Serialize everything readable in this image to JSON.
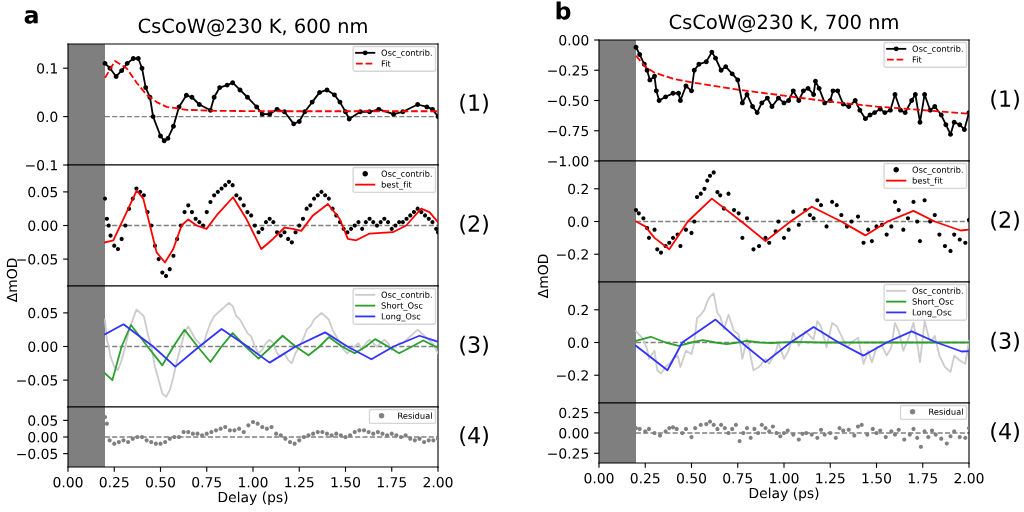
{
  "chart_data": [
    {
      "type": "line",
      "title": "CsCoW@230 K, 600 nm",
      "annotations": [
        "(1)",
        "a"
      ],
      "xlim": [
        0,
        2
      ],
      "ylim": [
        -0.1,
        0.15
      ],
      "yticks": [
        {
          "value": -0.1,
          "label": "−0.1"
        },
        {
          "value": 0,
          "label": "0.0"
        },
        {
          "value": 0.1,
          "label": "0.1"
        }
      ],
      "tick_labels": "y",
      "legend": "top right",
      "bands": [
        {
          "axis": "x",
          "from": 0,
          "to": 0.2,
          "color": "#7f7f7f"
        }
      ],
      "ref_lines": [
        {
          "axis": "y",
          "value": 0,
          "color": "#808080",
          "line_style": "dashed"
        }
      ],
      "series": [
        {
          "name": "Osc_contrib.",
          "color": "#000000",
          "type": "line",
          "marker": "circle",
          "line_style": "solid",
          "x": [
            0.2,
            0.227,
            0.26,
            0.29,
            0.32,
            0.353,
            0.38,
            0.4,
            0.42,
            0.443,
            0.46,
            0.5,
            0.52,
            0.54,
            0.57,
            0.6,
            0.64,
            0.67,
            0.71,
            0.77,
            0.79,
            0.82,
            0.86,
            0.89,
            0.93,
            0.97,
            1.02,
            1.05,
            1.09,
            1.13,
            1.17,
            1.22,
            1.25,
            1.28,
            1.32,
            1.36,
            1.4,
            1.44,
            1.47,
            1.5,
            1.52,
            1.58,
            1.63,
            1.68,
            1.76,
            1.81,
            1.89,
            1.94,
            1.97,
            2.0
          ],
          "values": [
            0.11,
            0.1,
            0.083,
            0.095,
            0.11,
            0.12,
            0.12,
            0.1,
            0.06,
            0.04,
            0.0,
            -0.04,
            -0.05,
            -0.045,
            -0.02,
            0.02,
            0.044,
            0.04,
            0.025,
            0.013,
            0.04,
            0.06,
            0.065,
            0.07,
            0.055,
            0.04,
            0.02,
            0.005,
            0.005,
            0.015,
            0.01,
            -0.015,
            -0.01,
            0.01,
            0.03,
            0.05,
            0.055,
            0.045,
            0.03,
            0.01,
            -0.005,
            0.01,
            0.01,
            0.015,
            0.005,
            0.01,
            0.025,
            0.02,
            0.015,
            0.0
          ]
        },
        {
          "name": "Fit",
          "color": "#ff0000",
          "type": "line",
          "line_style": "dashed",
          "x": [
            0.2,
            0.254,
            0.317,
            0.371,
            0.425,
            0.479,
            0.533,
            0.64,
            0.8,
            1.07,
            1.43,
            2.0
          ],
          "values": [
            0.08,
            0.115,
            0.1,
            0.07,
            0.045,
            0.03,
            0.02,
            0.014,
            0.012,
            0.011,
            0.011,
            0.011
          ]
        }
      ]
    },
    {
      "type": "line",
      "ylabel": "ΔmOD",
      "annotations": [
        "(2)"
      ],
      "xlim": [
        0,
        2
      ],
      "ylim": [
        -0.09,
        0.09
      ],
      "yticks": [
        {
          "value": -0.05,
          "label": "−0.05"
        },
        {
          "value": 0,
          "label": "0.00"
        },
        {
          "value": 0.05,
          "label": "0.05"
        }
      ],
      "tick_labels": "y",
      "legend": "top right",
      "bands": [
        {
          "axis": "x",
          "from": 0,
          "to": 0.2,
          "color": "#7f7f7f"
        }
      ],
      "ref_lines": [
        {
          "axis": "y",
          "value": 0,
          "color": "#808080",
          "line_style": "dashed"
        }
      ],
      "series": [
        {
          "name": "Osc_contrib.",
          "color": "#000000",
          "type": "scatter",
          "x": [
            0.2,
            0.21,
            0.22,
            0.23,
            0.25,
            0.27,
            0.29,
            0.31,
            0.33,
            0.35,
            0.37,
            0.39,
            0.41,
            0.43,
            0.45,
            0.47,
            0.49,
            0.51,
            0.53,
            0.55,
            0.57,
            0.59,
            0.61,
            0.63,
            0.65,
            0.67,
            0.69,
            0.71,
            0.73,
            0.75,
            0.77,
            0.79,
            0.81,
            0.83,
            0.85,
            0.87,
            0.89,
            0.91,
            0.93,
            0.95,
            0.97,
            0.99,
            1.01,
            1.03,
            1.05,
            1.07,
            1.09,
            1.11,
            1.13,
            1.15,
            1.17,
            1.19,
            1.21,
            1.23,
            1.25,
            1.27,
            1.29,
            1.31,
            1.33,
            1.35,
            1.37,
            1.39,
            1.41,
            1.43,
            1.45,
            1.47,
            1.49,
            1.51,
            1.53,
            1.55,
            1.57,
            1.59,
            1.61,
            1.63,
            1.65,
            1.67,
            1.69,
            1.71,
            1.73,
            1.75,
            1.77,
            1.79,
            1.81,
            1.83,
            1.85,
            1.87,
            1.89,
            1.91,
            1.93,
            1.95,
            1.97,
            1.99,
            2.0
          ],
          "values": [
            0.04,
            0.01,
            0.0,
            -0.015,
            -0.03,
            -0.035,
            -0.02,
            0.0,
            0.025,
            0.04,
            0.055,
            0.05,
            0.045,
            0.02,
            0.0,
            -0.03,
            -0.05,
            -0.07,
            -0.075,
            -0.065,
            -0.045,
            -0.02,
            0.0,
            0.02,
            0.03,
            0.02,
            0.01,
            0.005,
            0.0,
            0.02,
            0.035,
            0.045,
            0.05,
            0.055,
            0.06,
            0.065,
            0.06,
            0.045,
            0.04,
            0.03,
            0.02,
            0.015,
            0.0,
            -0.01,
            -0.005,
            0.005,
            0.01,
            0.005,
            -0.01,
            -0.015,
            -0.01,
            -0.02,
            -0.025,
            -0.01,
            0.0,
            0.01,
            0.025,
            0.03,
            0.04,
            0.045,
            0.05,
            0.045,
            0.04,
            0.025,
            0.015,
            0.005,
            -0.005,
            -0.01,
            -0.005,
            0.0,
            0.005,
            -0.005,
            0.005,
            0.01,
            0.005,
            0.0,
            0.005,
            0.01,
            0.005,
            -0.005,
            0.0,
            0.005,
            0.005,
            0.01,
            0.015,
            0.02,
            0.025,
            0.02,
            0.015,
            0.01,
            0.005,
            -0.005,
            -0.01
          ]
        },
        {
          "name": "best_fit",
          "color": "#ff0000",
          "type": "line",
          "line_style": "solid",
          "x": [
            0.2,
            0.245,
            0.317,
            0.371,
            0.407,
            0.443,
            0.479,
            0.524,
            0.569,
            0.614,
            0.65,
            0.695,
            0.749,
            0.803,
            0.892,
            0.964,
            1.045,
            1.108,
            1.171,
            1.216,
            1.261,
            1.324,
            1.405,
            1.468,
            1.513,
            1.558,
            1.63,
            1.756,
            1.828,
            1.909,
            1.954,
            2.0
          ],
          "values": [
            -0.025,
            -0.022,
            0.02,
            0.052,
            0.04,
            0.0,
            -0.04,
            -0.055,
            -0.035,
            0.0,
            0.009,
            0.0,
            -0.005,
            0.015,
            0.042,
            0.01,
            -0.035,
            -0.02,
            -0.003,
            -0.005,
            -0.008,
            0.015,
            0.032,
            0.01,
            -0.02,
            -0.022,
            -0.012,
            -0.01,
            0.0,
            0.025,
            0.02,
            0.005
          ]
        }
      ]
    },
    {
      "type": "line",
      "annotations": [
        "(3)"
      ],
      "xlim": [
        0,
        2
      ],
      "ylim": [
        -0.09,
        0.09
      ],
      "yticks": [
        {
          "value": -0.05,
          "label": "−0.05"
        },
        {
          "value": 0,
          "label": "0.00"
        },
        {
          "value": 0.05,
          "label": "0.05"
        }
      ],
      "tick_labels": "y",
      "legend": "top right",
      "bands": [
        {
          "axis": "x",
          "from": 0,
          "to": 0.2,
          "color": "#7f7f7f"
        }
      ],
      "ref_lines": [
        {
          "axis": "y",
          "value": 0,
          "color": "#808080",
          "line_style": "dashed"
        }
      ],
      "series": [
        {
          "name": "Osc_contrib.",
          "color": "#cccccc",
          "type": "line",
          "line_style": "solid",
          "x": [
            0.2,
            0.21,
            0.22,
            0.23,
            0.25,
            0.27,
            0.29,
            0.31,
            0.33,
            0.35,
            0.37,
            0.39,
            0.41,
            0.43,
            0.45,
            0.47,
            0.49,
            0.51,
            0.53,
            0.55,
            0.57,
            0.59,
            0.61,
            0.63,
            0.65,
            0.67,
            0.69,
            0.71,
            0.73,
            0.75,
            0.77,
            0.79,
            0.81,
            0.83,
            0.85,
            0.87,
            0.89,
            0.91,
            0.93,
            0.95,
            0.97,
            0.99,
            1.01,
            1.03,
            1.05,
            1.07,
            1.09,
            1.11,
            1.13,
            1.15,
            1.17,
            1.19,
            1.21,
            1.23,
            1.25,
            1.27,
            1.29,
            1.31,
            1.33,
            1.35,
            1.37,
            1.39,
            1.41,
            1.43,
            1.45,
            1.47,
            1.49,
            1.51,
            1.53,
            1.55,
            1.57,
            1.59,
            1.61,
            1.63,
            1.65,
            1.67,
            1.69,
            1.71,
            1.73,
            1.75,
            1.77,
            1.79,
            1.81,
            1.83,
            1.85,
            1.87,
            1.89,
            1.91,
            1.93,
            1.95,
            1.97,
            1.99,
            2.0
          ],
          "values": [
            0.04,
            0.01,
            0.0,
            -0.015,
            -0.03,
            -0.035,
            -0.02,
            0.0,
            0.025,
            0.04,
            0.055,
            0.05,
            0.045,
            0.02,
            0.0,
            -0.03,
            -0.05,
            -0.07,
            -0.075,
            -0.065,
            -0.045,
            -0.02,
            0.0,
            0.02,
            0.03,
            0.02,
            0.01,
            0.005,
            0.0,
            0.02,
            0.035,
            0.045,
            0.05,
            0.055,
            0.06,
            0.065,
            0.06,
            0.045,
            0.04,
            0.03,
            0.02,
            0.015,
            0.0,
            -0.01,
            -0.005,
            0.005,
            0.01,
            0.005,
            -0.01,
            -0.015,
            -0.01,
            -0.02,
            -0.025,
            -0.01,
            0.0,
            0.01,
            0.025,
            0.03,
            0.04,
            0.045,
            0.05,
            0.045,
            0.04,
            0.025,
            0.015,
            0.005,
            -0.005,
            -0.01,
            -0.005,
            0.0,
            0.005,
            -0.005,
            0.005,
            0.01,
            0.005,
            0.0,
            0.005,
            0.01,
            0.005,
            -0.005,
            0.0,
            0.005,
            0.005,
            0.01,
            0.015,
            0.02,
            0.025,
            0.02,
            0.015,
            0.01,
            0.005,
            -0.005,
            -0.01
          ]
        },
        {
          "name": "Short_Osc",
          "color": "#2ca02c",
          "type": "line",
          "line_style": "solid",
          "x": [
            0.2,
            0.24,
            0.29,
            0.34,
            0.43,
            0.51,
            0.57,
            0.63,
            0.7,
            0.77,
            0.83,
            0.89,
            0.96,
            1.03,
            1.1,
            1.16,
            1.23,
            1.3,
            1.36,
            1.41,
            1.48,
            1.55,
            1.61,
            1.66,
            1.73,
            1.79,
            1.86,
            1.92,
            2.0
          ],
          "values": [
            -0.04,
            -0.05,
            0.0,
            0.032,
            0.0,
            -0.028,
            0.0,
            0.025,
            0.0,
            -0.023,
            0.0,
            0.02,
            0.0,
            -0.018,
            0.0,
            0.016,
            0.0,
            -0.013,
            0.0,
            0.014,
            0.0,
            -0.01,
            0.0,
            0.011,
            0.0,
            -0.01,
            0.0,
            0.009,
            -0.002
          ]
        },
        {
          "name": "Long_Osc",
          "color": "#3333ff",
          "type": "line",
          "line_style": "solid",
          "x": [
            0.2,
            0.3,
            0.46,
            0.58,
            0.71,
            0.83,
            0.97,
            1.09,
            1.23,
            1.39,
            1.51,
            1.64,
            1.76,
            1.9,
            2.0
          ],
          "values": [
            0.018,
            0.033,
            0.0,
            -0.03,
            0.0,
            0.026,
            0.0,
            -0.024,
            0.0,
            0.021,
            0.0,
            -0.019,
            0.0,
            0.016,
            0.007
          ]
        }
      ]
    },
    {
      "type": "line",
      "xlabel": "Delay (ps)",
      "annotations": [
        "(4)"
      ],
      "xlim": [
        0,
        2
      ],
      "ylim": [
        -0.09,
        0.09
      ],
      "xticks": [
        {
          "value": 0,
          "label": "0.00"
        },
        {
          "value": 0.25,
          "label": "0.25"
        },
        {
          "value": 0.5,
          "label": "0.50"
        },
        {
          "value": 0.75,
          "label": "0.75"
        },
        {
          "value": 1,
          "label": "1.00"
        },
        {
          "value": 1.25,
          "label": "1.25"
        },
        {
          "value": 1.5,
          "label": "1.50"
        },
        {
          "value": 1.75,
          "label": "1.75"
        },
        {
          "value": 2,
          "label": "2.00"
        }
      ],
      "yticks": [
        {
          "value": -0.05,
          "label": "−0.05"
        },
        {
          "value": 0,
          "label": "0.00"
        },
        {
          "value": 0.05,
          "label": "0.05"
        }
      ],
      "legend": "top right",
      "bands": [
        {
          "axis": "x",
          "from": 0,
          "to": 0.2,
          "color": "#7f7f7f"
        }
      ],
      "ref_lines": [
        {
          "axis": "y",
          "value": 0,
          "color": "#808080",
          "line_style": "dashed"
        }
      ],
      "series": [
        {
          "name": "Residual",
          "color": "#808080",
          "type": "scatter",
          "x": [
            0.2,
            0.21,
            0.225,
            0.25,
            0.275,
            0.3,
            0.325,
            0.35,
            0.375,
            0.4,
            0.425,
            0.45,
            0.475,
            0.5,
            0.525,
            0.55,
            0.575,
            0.6,
            0.625,
            0.65,
            0.675,
            0.7,
            0.725,
            0.75,
            0.775,
            0.8,
            0.825,
            0.85,
            0.875,
            0.9,
            0.925,
            0.95,
            0.975,
            1.0,
            1.025,
            1.05,
            1.075,
            1.1,
            1.125,
            1.15,
            1.175,
            1.2,
            1.225,
            1.25,
            1.275,
            1.3,
            1.325,
            1.35,
            1.375,
            1.4,
            1.425,
            1.45,
            1.475,
            1.5,
            1.525,
            1.55,
            1.575,
            1.6,
            1.625,
            1.65,
            1.675,
            1.7,
            1.725,
            1.75,
            1.775,
            1.8,
            1.825,
            1.85,
            1.875,
            1.9,
            1.925,
            1.95,
            1.975,
            2.0
          ],
          "values": [
            0.06,
            0.04,
            -0.01,
            -0.02,
            -0.015,
            -0.01,
            -0.015,
            -0.005,
            0.0,
            0.0,
            -0.01,
            -0.015,
            -0.02,
            -0.02,
            -0.015,
            -0.005,
            0.0,
            0.0,
            0.015,
            0.015,
            0.01,
            0.01,
            0.005,
            0.01,
            0.015,
            0.02,
            0.025,
            0.03,
            0.02,
            0.02,
            0.025,
            0.015,
            0.035,
            0.045,
            0.04,
            0.03,
            0.025,
            0.03,
            0.01,
            0.005,
            -0.005,
            -0.015,
            -0.02,
            -0.01,
            0.0,
            0.005,
            0.01,
            0.015,
            0.015,
            0.01,
            0.005,
            0.01,
            0.005,
            0.0,
            0.005,
            0.015,
            0.02,
            0.02,
            0.015,
            0.01,
            0.015,
            0.01,
            0.005,
            0.01,
            0.005,
            0.0,
            0.005,
            -0.005,
            -0.01,
            -0.005,
            -0.015,
            -0.01,
            -0.01,
            -0.005
          ]
        }
      ]
    },
    {
      "type": "line",
      "title": "CsCoW@230 K, 700 nm",
      "annotations": [
        "(1)",
        "b"
      ],
      "xlim": [
        0,
        2
      ],
      "ylim": [
        -1.0,
        0.0
      ],
      "yticks": [
        {
          "value": -1.0,
          "label": "−1.00"
        },
        {
          "value": -0.75,
          "label": "−0.75"
        },
        {
          "value": -0.5,
          "label": "−0.50"
        },
        {
          "value": -0.25,
          "label": "−0.25"
        },
        {
          "value": 0,
          "label": "0.00"
        }
      ],
      "tick_labels": "y",
      "legend": "top right",
      "bands": [
        {
          "axis": "x",
          "from": 0,
          "to": 0.2,
          "color": "#7f7f7f"
        }
      ],
      "series": [
        {
          "name": "Osc_contrib.",
          "color": "#000000",
          "type": "line",
          "marker": "circle",
          "line_style": "solid",
          "x": [
            0.2,
            0.22,
            0.245,
            0.26,
            0.275,
            0.3,
            0.31,
            0.325,
            0.36,
            0.4,
            0.43,
            0.44,
            0.47,
            0.5,
            0.515,
            0.54,
            0.58,
            0.61,
            0.63,
            0.66,
            0.685,
            0.72,
            0.75,
            0.775,
            0.8,
            0.83,
            0.855,
            0.88,
            0.91,
            0.935,
            0.97,
            1.0,
            1.025,
            1.05,
            1.08,
            1.105,
            1.13,
            1.16,
            1.17,
            1.19,
            1.22,
            1.25,
            1.265,
            1.29,
            1.32,
            1.35,
            1.385,
            1.41,
            1.44,
            1.465,
            1.49,
            1.52,
            1.545,
            1.575,
            1.6,
            1.63,
            1.655,
            1.69,
            1.71,
            1.735,
            1.76,
            1.79,
            1.815,
            1.85,
            1.875,
            1.9,
            1.92,
            1.95,
            1.975,
            2.0
          ],
          "values": [
            -0.06,
            -0.12,
            -0.2,
            -0.25,
            -0.33,
            -0.3,
            -0.42,
            -0.5,
            -0.47,
            -0.44,
            -0.44,
            -0.5,
            -0.38,
            -0.42,
            -0.25,
            -0.2,
            -0.18,
            -0.1,
            -0.15,
            -0.25,
            -0.22,
            -0.28,
            -0.33,
            -0.52,
            -0.45,
            -0.55,
            -0.6,
            -0.52,
            -0.48,
            -0.55,
            -0.48,
            -0.52,
            -0.5,
            -0.42,
            -0.5,
            -0.42,
            -0.4,
            -0.45,
            -0.34,
            -0.4,
            -0.52,
            -0.5,
            -0.42,
            -0.42,
            -0.53,
            -0.55,
            -0.5,
            -0.58,
            -0.65,
            -0.62,
            -0.6,
            -0.57,
            -0.6,
            -0.58,
            -0.45,
            -0.58,
            -0.6,
            -0.5,
            -0.45,
            -0.68,
            -0.45,
            -0.58,
            -0.55,
            -0.62,
            -0.7,
            -0.78,
            -0.68,
            -0.7,
            -0.74,
            -0.6
          ]
        },
        {
          "name": "Fit",
          "color": "#ff0000",
          "type": "line",
          "line_style": "dashed",
          "x": [
            0.2,
            0.25,
            0.3,
            0.4,
            0.5,
            0.75,
            1.0,
            1.25,
            1.5,
            1.75,
            2.0
          ],
          "values": [
            -0.13,
            -0.22,
            -0.27,
            -0.32,
            -0.35,
            -0.41,
            -0.46,
            -0.51,
            -0.55,
            -0.58,
            -0.61
          ]
        }
      ]
    },
    {
      "type": "line",
      "ylabel": "ΔmOD",
      "annotations": [
        "(2)"
      ],
      "xlim": [
        0,
        2
      ],
      "ylim": [
        -0.37,
        0.37
      ],
      "yticks": [
        {
          "value": -0.2,
          "label": "−0.2"
        },
        {
          "value": 0,
          "label": "0.0"
        },
        {
          "value": 0.2,
          "label": "0.2"
        }
      ],
      "tick_labels": "y",
      "legend": "top right",
      "bands": [
        {
          "axis": "x",
          "from": 0,
          "to": 0.2,
          "color": "#7f7f7f"
        }
      ],
      "ref_lines": [
        {
          "axis": "y",
          "value": 0,
          "color": "#808080",
          "line_style": "dashed"
        }
      ],
      "series": [
        {
          "name": "Osc_contrib.",
          "color": "#000000",
          "type": "scatter",
          "x": [
            0.2,
            0.215,
            0.24,
            0.26,
            0.27,
            0.3,
            0.315,
            0.335,
            0.36,
            0.38,
            0.4,
            0.425,
            0.44,
            0.47,
            0.5,
            0.515,
            0.53,
            0.55,
            0.57,
            0.585,
            0.6,
            0.62,
            0.64,
            0.655,
            0.675,
            0.7,
            0.73,
            0.755,
            0.775,
            0.8,
            0.835,
            0.865,
            0.9,
            0.92,
            0.955,
            0.97,
            1.0,
            1.025,
            1.05,
            1.08,
            1.115,
            1.14,
            1.16,
            1.18,
            1.2,
            1.23,
            1.26,
            1.285,
            1.31,
            1.34,
            1.365,
            1.4,
            1.43,
            1.455,
            1.475,
            1.5,
            1.53,
            1.555,
            1.58,
            1.6,
            1.62,
            1.645,
            1.67,
            1.7,
            1.72,
            1.735,
            1.76,
            1.79,
            1.815,
            1.84,
            1.87,
            1.9,
            1.92,
            1.95,
            1.98,
            2.0
          ],
          "values": [
            0.07,
            0.05,
            0.02,
            -0.04,
            -0.1,
            -0.05,
            -0.17,
            -0.19,
            -0.15,
            -0.13,
            -0.1,
            -0.08,
            -0.15,
            -0.05,
            -0.07,
            0.0,
            0.15,
            0.17,
            0.2,
            0.25,
            0.28,
            0.3,
            0.18,
            0.16,
            0.08,
            0.17,
            0.07,
            0.05,
            -0.1,
            0.02,
            -0.17,
            -0.15,
            -0.1,
            -0.13,
            -0.06,
            0.0,
            -0.1,
            -0.05,
            0.06,
            -0.02,
            0.07,
            0.04,
            0.02,
            0.13,
            0.1,
            -0.03,
            0.12,
            0.1,
            0.04,
            -0.03,
            0.0,
            0.03,
            -0.13,
            -0.05,
            -0.12,
            -0.03,
            -0.02,
            -0.08,
            -0.03,
            0.12,
            0.07,
            -0.05,
            0.02,
            0.12,
            0.0,
            -0.12,
            0.13,
            0.0,
            0.04,
            -0.08,
            -0.15,
            -0.18,
            -0.08,
            -0.11,
            -0.13,
            0.01
          ]
        },
        {
          "name": "best_fit",
          "color": "#ff0000",
          "type": "line",
          "line_style": "solid",
          "x": [
            0.2,
            0.25,
            0.3,
            0.38,
            0.48,
            0.61,
            0.77,
            0.9,
            1.035,
            1.15,
            1.31,
            1.44,
            1.56,
            1.7,
            1.815,
            1.955,
            2.0
          ],
          "values": [
            0.0,
            -0.03,
            -0.1,
            -0.17,
            0.0,
            0.14,
            0.0,
            -0.12,
            0.0,
            0.09,
            0.0,
            -0.085,
            0.0,
            0.065,
            0.0,
            -0.055,
            -0.05
          ]
        }
      ]
    },
    {
      "type": "line",
      "annotations": [
        "(3)"
      ],
      "xlim": [
        0,
        2
      ],
      "ylim": [
        -0.37,
        0.37
      ],
      "yticks": [
        {
          "value": -0.2,
          "label": "−0.2"
        },
        {
          "value": 0,
          "label": "0.0"
        },
        {
          "value": 0.2,
          "label": "0.2"
        }
      ],
      "tick_labels": "y",
      "legend": "top right",
      "bands": [
        {
          "axis": "x",
          "from": 0,
          "to": 0.2,
          "color": "#7f7f7f"
        }
      ],
      "ref_lines": [
        {
          "axis": "y",
          "value": 0,
          "color": "#808080",
          "line_style": "dashed"
        }
      ],
      "series": [
        {
          "name": "Osc_contrib.",
          "color": "#cccccc",
          "type": "line",
          "line_style": "solid",
          "x": [
            0.2,
            0.215,
            0.24,
            0.26,
            0.27,
            0.3,
            0.315,
            0.335,
            0.36,
            0.38,
            0.4,
            0.425,
            0.44,
            0.47,
            0.5,
            0.515,
            0.53,
            0.55,
            0.57,
            0.585,
            0.6,
            0.62,
            0.64,
            0.655,
            0.675,
            0.7,
            0.73,
            0.755,
            0.775,
            0.8,
            0.835,
            0.865,
            0.9,
            0.92,
            0.955,
            0.97,
            1.0,
            1.025,
            1.05,
            1.08,
            1.115,
            1.14,
            1.16,
            1.18,
            1.2,
            1.23,
            1.26,
            1.285,
            1.31,
            1.34,
            1.365,
            1.4,
            1.43,
            1.455,
            1.475,
            1.5,
            1.53,
            1.555,
            1.58,
            1.6,
            1.62,
            1.645,
            1.67,
            1.7,
            1.72,
            1.735,
            1.76,
            1.79,
            1.815,
            1.84,
            1.87,
            1.9,
            1.92,
            1.95,
            1.98,
            2.0
          ],
          "values": [
            0.07,
            0.05,
            0.02,
            -0.04,
            -0.1,
            -0.05,
            -0.17,
            -0.19,
            -0.15,
            -0.13,
            -0.1,
            -0.08,
            -0.15,
            -0.05,
            -0.07,
            0.0,
            0.15,
            0.17,
            0.2,
            0.25,
            0.28,
            0.3,
            0.18,
            0.16,
            0.08,
            0.17,
            0.07,
            0.05,
            -0.1,
            0.02,
            -0.17,
            -0.15,
            -0.1,
            -0.13,
            -0.06,
            0.0,
            -0.1,
            -0.05,
            0.06,
            -0.02,
            0.07,
            0.04,
            0.02,
            0.13,
            0.1,
            -0.03,
            0.12,
            0.1,
            0.04,
            -0.03,
            0.0,
            0.03,
            -0.13,
            -0.05,
            -0.12,
            -0.03,
            -0.02,
            -0.08,
            -0.03,
            0.12,
            0.07,
            -0.05,
            0.02,
            0.12,
            0.0,
            -0.12,
            0.13,
            0.0,
            0.04,
            -0.08,
            -0.15,
            -0.18,
            -0.08,
            -0.11,
            -0.13,
            0.01
          ]
        },
        {
          "name": "Short_Osc",
          "color": "#2ca02c",
          "type": "line",
          "line_style": "solid",
          "x": [
            0.2,
            0.28,
            0.36,
            0.43,
            0.5,
            0.56,
            0.63,
            0.69,
            0.75,
            0.8,
            0.87,
            0.93,
            1.05,
            1.2,
            2.0
          ],
          "values": [
            0.01,
            0.035,
            0.0,
            -0.02,
            0.0,
            0.015,
            0.0,
            -0.01,
            0.0,
            0.01,
            0.0,
            -0.003,
            0.004,
            0.0,
            0.0
          ]
        },
        {
          "name": "Long_Osc",
          "color": "#3333ff",
          "type": "line",
          "line_style": "solid",
          "x": [
            0.2,
            0.37,
            0.45,
            0.63,
            0.77,
            0.9,
            1.035,
            1.16,
            1.295,
            1.43,
            1.555,
            1.69,
            1.825,
            1.96,
            2.0
          ],
          "values": [
            -0.02,
            -0.17,
            0.0,
            0.14,
            0.0,
            -0.12,
            0.0,
            0.095,
            0.0,
            -0.08,
            0.0,
            0.068,
            0.0,
            -0.055,
            -0.053
          ]
        }
      ]
    },
    {
      "type": "line",
      "xlabel": "Delay (ps)",
      "annotations": [
        "(4)"
      ],
      "xlim": [
        0,
        2
      ],
      "ylim": [
        -0.37,
        0.37
      ],
      "xticks": [
        {
          "value": 0,
          "label": "0.00"
        },
        {
          "value": 0.25,
          "label": "0.25"
        },
        {
          "value": 0.5,
          "label": "0.50"
        },
        {
          "value": 0.75,
          "label": "0.75"
        },
        {
          "value": 1,
          "label": "1.00"
        },
        {
          "value": 1.25,
          "label": "1.25"
        },
        {
          "value": 1.5,
          "label": "1.50"
        },
        {
          "value": 1.75,
          "label": "1.75"
        },
        {
          "value": 2,
          "label": "2.00"
        }
      ],
      "yticks": [
        {
          "value": -0.25,
          "label": "−0.25"
        },
        {
          "value": 0,
          "label": "0.00"
        },
        {
          "value": 0.25,
          "label": "0.25"
        }
      ],
      "legend": "top right",
      "bands": [
        {
          "axis": "x",
          "from": 0,
          "to": 0.2,
          "color": "#7f7f7f"
        }
      ],
      "ref_lines": [
        {
          "axis": "y",
          "value": 0,
          "color": "#808080",
          "line_style": "dashed"
        }
      ],
      "series": [
        {
          "name": "Residual",
          "color": "#808080",
          "type": "scatter",
          "x": [
            0.2,
            0.22,
            0.25,
            0.27,
            0.3,
            0.33,
            0.36,
            0.38,
            0.4,
            0.42,
            0.45,
            0.47,
            0.5,
            0.52,
            0.55,
            0.58,
            0.6,
            0.62,
            0.64,
            0.66,
            0.68,
            0.7,
            0.72,
            0.74,
            0.76,
            0.78,
            0.8,
            0.82,
            0.84,
            0.86,
            0.88,
            0.9,
            0.92,
            0.94,
            0.96,
            0.98,
            1.0,
            1.02,
            1.05,
            1.08,
            1.1,
            1.12,
            1.15,
            1.18,
            1.2,
            1.22,
            1.25,
            1.28,
            1.3,
            1.32,
            1.35,
            1.38,
            1.4,
            1.42,
            1.45,
            1.48,
            1.5,
            1.52,
            1.55,
            1.58,
            1.6,
            1.62,
            1.65,
            1.68,
            1.7,
            1.72,
            1.74,
            1.76,
            1.78,
            1.8,
            1.82,
            1.85,
            1.88,
            1.9,
            1.92,
            1.95,
            1.98,
            2.0
          ],
          "values": [
            0.06,
            0.05,
            0.02,
            0.05,
            0.0,
            -0.03,
            0.02,
            0.06,
            0.07,
            0.05,
            0.0,
            0.05,
            -0.05,
            0.06,
            0.1,
            0.11,
            0.14,
            0.1,
            0.05,
            0.1,
            0.06,
            0.0,
            0.05,
            0.1,
            -0.1,
            0.0,
            0.06,
            -0.06,
            0.05,
            0.0,
            0.1,
            0.06,
            0.02,
            0.08,
            0.0,
            -0.04,
            0.0,
            0.03,
            -0.02,
            -0.08,
            -0.01,
            0.0,
            -0.02,
            -0.06,
            0.04,
            -0.02,
            0.0,
            -0.06,
            0.06,
            0.03,
            0.04,
            -0.03,
            0.08,
            0.1,
            -0.02,
            0.05,
            0.0,
            0.03,
            -0.05,
            0.02,
            -0.02,
            0.04,
            -0.08,
            -0.02,
            0.05,
            -0.06,
            -0.17,
            0.02,
            -0.05,
            0.03,
            -0.02,
            -0.07,
            -0.13,
            -0.04,
            0.02,
            -0.05,
            -0.06,
            0.06
          ]
        }
      ]
    }
  ]
}
